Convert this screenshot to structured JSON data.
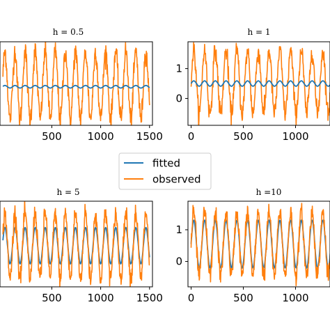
{
  "chart_data": [
    {
      "type": "line",
      "title": "h = 0.5",
      "xlim": [
        -30,
        1530
      ],
      "ylim": [
        -0.7,
        1.9
      ],
      "xticks": [
        500,
        1000,
        1500
      ],
      "xtick_labels": [
        "500",
        "1000",
        "1500"
      ],
      "yticks": [],
      "ytick_labels": [],
      "observed": {
        "period": 103,
        "phase": 0.3,
        "mean": 0.55,
        "amplitude": 1.05,
        "noise": 0.16
      },
      "fitted": {
        "period": 103,
        "phase": 0.3,
        "mean": 0.5,
        "amplitude": 0.04
      },
      "series": [
        {
          "name": "fitted",
          "color": "#1f77b4"
        },
        {
          "name": "observed",
          "color": "#ff7f0e"
        }
      ]
    },
    {
      "type": "line",
      "title": "h = 1",
      "xlim": [
        -30,
        1330
      ],
      "ylim": [
        -0.9,
        1.9
      ],
      "xticks": [
        0,
        500,
        1000
      ],
      "xtick_labels": [
        "0",
        "500",
        "1000"
      ],
      "yticks": [
        1,
        0
      ],
      "ytick_labels": [
        "1",
        "0"
      ],
      "observed": {
        "period": 103,
        "phase": 0.0,
        "mean": 0.55,
        "amplitude": 1.05,
        "noise": 0.16
      },
      "fitted": {
        "period": 103,
        "phase": 0.0,
        "mean": 0.5,
        "amplitude": 0.09
      },
      "series": [
        {
          "name": "fitted",
          "color": "#1f77b4"
        },
        {
          "name": "observed",
          "color": "#ff7f0e"
        }
      ]
    },
    {
      "type": "line",
      "title": "h = 5",
      "xlim": [
        -30,
        1530
      ],
      "ylim": [
        -0.7,
        1.9
      ],
      "xticks": [
        500,
        1000,
        1500
      ],
      "xtick_labels": [
        "500",
        "1000",
        "1500"
      ],
      "yticks": [],
      "ytick_labels": [],
      "observed": {
        "period": 103,
        "phase": 0.3,
        "mean": 0.55,
        "amplitude": 1.0,
        "noise": 0.14
      },
      "fitted": {
        "period": 103,
        "phase": 0.3,
        "mean": 0.55,
        "amplitude": 0.55
      },
      "series": [
        {
          "name": "fitted",
          "color": "#1f77b4"
        },
        {
          "name": "observed",
          "color": "#ff7f0e"
        }
      ]
    },
    {
      "type": "line",
      "title": "h =10",
      "xlim": [
        -30,
        1330
      ],
      "ylim": [
        -0.8,
        1.9
      ],
      "xticks": [
        0,
        500,
        1000
      ],
      "xtick_labels": [
        "0",
        "500",
        "1000"
      ],
      "yticks": [
        1,
        0
      ],
      "ytick_labels": [
        "1",
        "0"
      ],
      "observed": {
        "period": 103,
        "phase": 0.0,
        "mean": 0.55,
        "amplitude": 1.0,
        "noise": 0.14
      },
      "fitted": {
        "period": 103,
        "phase": 0.0,
        "mean": 0.55,
        "amplitude": 0.75
      },
      "series": [
        {
          "name": "fitted",
          "color": "#1f77b4"
        },
        {
          "name": "observed",
          "color": "#ff7f0e"
        }
      ]
    }
  ],
  "legend": {
    "placement": "center",
    "items": [
      {
        "label": "fitted",
        "color": "#1f77b4"
      },
      {
        "label": "observed",
        "color": "#ff7f0e"
      }
    ]
  }
}
